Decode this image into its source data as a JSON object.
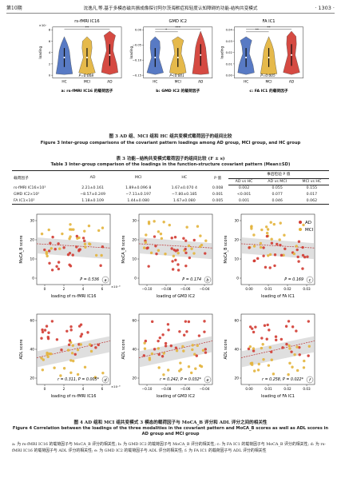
{
  "running_head": {
    "issue": "第10期",
    "title": "沈逸凡,等.基于多模态磁共振成像探讨阿尔茨海默症和轻度认知障碍的功能-结构共变模式",
    "page": "· 1303 ·"
  },
  "fig3": {
    "panels": [
      {
        "title": "rs-fMRI IC16",
        "multiplier": "×10⁻",
        "ylabel": "loading",
        "pvalue": "P=0.008",
        "sig_top": "**",
        "sig_low": "",
        "yticks": [
          "8",
          "6",
          "4",
          "2",
          "0"
        ],
        "sublabel": "a: rs-fMRI IC16 的载荷因子"
      },
      {
        "title": "GMD IC2",
        "multiplier": "",
        "ylabel": "loading",
        "pvalue": "P<0.001",
        "sig_top": "***",
        "sig_low": "*",
        "yticks": [
          "0.00",
          "−0.05",
          "−0.10",
          "−0.15"
        ],
        "sublabel": "b: GMD IC2 的载荷因子"
      },
      {
        "title": "FA IC1",
        "multiplier": "",
        "ylabel": "loading",
        "pvalue": "P=0.005",
        "sig_top": "**",
        "sig_low": "**",
        "yticks": [
          "0.04",
          "0.03",
          "0.02",
          "0.01",
          "0.00"
        ],
        "sublabel": "c: FA IC1 的载荷因子"
      }
    ],
    "groups": [
      "HC",
      "MCI",
      "AD"
    ],
    "colors": {
      "hc": "#4a6fbf",
      "mci": "#e3b43c",
      "ad": "#d23b32"
    }
  },
  "fig3_caption": {
    "cn": "图 3  AD 组、MCI 组和 HC 组共变模式载荷因子的组间比较",
    "en": "Figure 3  Inter-group comparisons of the covariant pattern loadings among AD group, MCI group, and HC group"
  },
  "table3": {
    "caption_cn": "表 3  功能−结构共变模式载荷因子的组间比较 (F ± s)",
    "caption_en": "Table 3  Inter-group comparison of the loadings in the function-structure covariant pattern (Mean±SD)",
    "headers": {
      "c0": "载荷因子",
      "c1": "AD",
      "c2": "MCI",
      "c3": "HC",
      "c4": "P 值",
      "group": "事后检验 P 值",
      "s1": "AD vs HC",
      "s2": "AD vs MCI",
      "s3": "MCI vs HC"
    },
    "rows": [
      [
        "rs-fMRI IC16×10³",
        "2.21±0.161",
        "1.89±0.096 8",
        "1.67±0.070 4",
        "0.008",
        "0.002",
        "0.055",
        "0.155"
      ],
      [
        "GMD IC2×10²",
        "−8.57±0.249",
        "−7.11±0.197",
        "−7.80±0.185",
        "0.001",
        "<0.001",
        "0.077",
        "0.017"
      ],
      [
        "FA IC1×10²",
        "1.18±0.109",
        "1.44±0.080",
        "1.67±0.080",
        "0.005",
        "0.001",
        "0.046",
        "0.062"
      ]
    ]
  },
  "fig4": {
    "legend": [
      "AD",
      "MCI"
    ],
    "top_row": [
      {
        "ylabel": "MoCA_B score",
        "xlabel": "loading of rs-fMRI IC16",
        "stat": "P = 0.536",
        "mult": "×10⁻³",
        "letter": "a",
        "xticks": [
          "0",
          "2",
          "4",
          "6"
        ],
        "yticks": [
          "30",
          "20",
          "10",
          "0"
        ]
      },
      {
        "ylabel": "MoCA_B score",
        "xlabel": "loading of GMD IC2",
        "stat": "P = 0.174",
        "mult": "",
        "letter": "b",
        "xticks": [
          "−0.10",
          "−0.08",
          "−0.06",
          "−0.04"
        ],
        "yticks": [
          "30",
          "20",
          "10",
          "0"
        ]
      },
      {
        "ylabel": "MoCA_B score",
        "xlabel": "loading of FA IC1",
        "stat": "P = 0.169",
        "mult": "",
        "letter": "c",
        "xticks": [
          "0.00",
          "0.01",
          "0.02",
          "0.03"
        ],
        "yticks": [
          "30",
          "20",
          "10",
          "0"
        ]
      }
    ],
    "bottom_row": [
      {
        "ylabel": "ADL score",
        "xlabel": "loading of rs-fMRI IC16",
        "stat": "r = 0.311, P = 0.005*",
        "mult": "×10⁻³",
        "letter": "d",
        "xticks": [
          "0",
          "2",
          "4",
          "6"
        ],
        "yticks": [
          "60",
          "40",
          "20"
        ]
      },
      {
        "ylabel": "ADL score",
        "xlabel": "loading of GMD IC2",
        "stat": "r = 0.242, P = 0.032*",
        "mult": "",
        "letter": "e",
        "xticks": [
          "−0.10",
          "−0.08",
          "−0.06",
          "−0.04"
        ],
        "yticks": [
          "60",
          "40",
          "20"
        ]
      },
      {
        "ylabel": "ADL score",
        "xlabel": "loading of FA IC1",
        "stat": "r = 0.258, P = 0.022*",
        "mult": "",
        "letter": "f",
        "xticks": [
          "0.00",
          "0.01",
          "0.02",
          "0.03"
        ],
        "yticks": [
          "60",
          "40",
          "20"
        ]
      }
    ]
  },
  "fig4_caption": {
    "cn": "图 4  AD 组和 MCI 组共变模式 3 模态的载荷因子与 MoCA_B 评分和 ADL 评分之间的相关性",
    "en": "Figure 4  Correlation between the loadings of the three modalities in the covariant pattern and MoCA_B scores as well as ADL scores in AD group and MCI group"
  },
  "fig4_note": "a: 为 rs-fMRI IC16 的载荷因子与 MoCA_B 评分的相关性; b: 为 GMD IC2 的载荷因子与 MoCA_B 评分的相关性; c: 为 FA IC1 的载荷因子与 MoCA_B 评分的相关性; d: 为 rs-fMRI IC16 的载荷因子与 ADL 评分的相关性; e: 为 GMD IC2 的载荷因子与 ADL 评分的相关性; f: 为 FA IC1 的载荷因子与 ADL 评分的相关性"
}
